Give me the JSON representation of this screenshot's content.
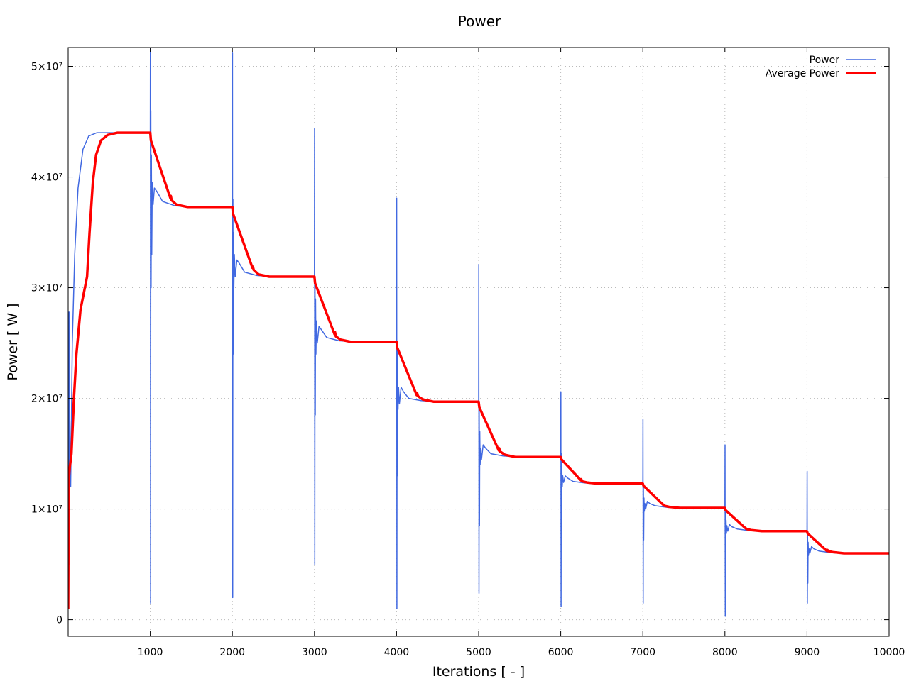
{
  "chart_data": {
    "type": "line",
    "title": "Power",
    "xlabel": "Iterations [ - ]",
    "ylabel": "Power [ W ]",
    "y_unit_multiplier": 10000000,
    "xlim": [
      0,
      10000
    ],
    "ylim": [
      -0.15,
      5.17
    ],
    "grid": true,
    "legend_position": "top-right",
    "x_ticks": [
      {
        "v": 1000,
        "label": "1000"
      },
      {
        "v": 2000,
        "label": "2000"
      },
      {
        "v": 3000,
        "label": "3000"
      },
      {
        "v": 4000,
        "label": "4000"
      },
      {
        "v": 5000,
        "label": "5000"
      },
      {
        "v": 6000,
        "label": "6000"
      },
      {
        "v": 7000,
        "label": "7000"
      },
      {
        "v": 8000,
        "label": "8000"
      },
      {
        "v": 9000,
        "label": "9000"
      },
      {
        "v": 10000,
        "label": "10000"
      }
    ],
    "y_ticks": [
      {
        "v": 0,
        "label": "0"
      },
      {
        "v": 1,
        "label": "1×10⁷"
      },
      {
        "v": 2,
        "label": "2×10⁷"
      },
      {
        "v": 3,
        "label": "3×10⁷"
      },
      {
        "v": 4,
        "label": "4×10⁷"
      },
      {
        "v": 5,
        "label": "5×10⁷"
      }
    ],
    "series": [
      {
        "name": "Power",
        "color": "#4169e1",
        "width": 1.5,
        "points": [
          [
            0,
            0.1
          ],
          [
            5,
            1.3
          ],
          [
            10,
            2.78
          ],
          [
            15,
            0.5
          ],
          [
            20,
            1.8
          ],
          [
            30,
            1.2
          ],
          [
            50,
            2.5
          ],
          [
            80,
            3.3
          ],
          [
            120,
            3.9
          ],
          [
            180,
            4.25
          ],
          [
            250,
            4.37
          ],
          [
            350,
            4.4
          ],
          [
            1000,
            4.4
          ],
          [
            1002,
            5.3
          ],
          [
            1004,
            0.15
          ],
          [
            1007,
            4.6
          ],
          [
            1010,
            3.0
          ],
          [
            1014,
            4.2
          ],
          [
            1018,
            3.3
          ],
          [
            1024,
            3.95
          ],
          [
            1035,
            3.75
          ],
          [
            1050,
            3.9
          ],
          [
            1080,
            3.87
          ],
          [
            1150,
            3.78
          ],
          [
            1300,
            3.74
          ],
          [
            1500,
            3.73
          ],
          [
            2000,
            3.73
          ],
          [
            2002,
            5.12
          ],
          [
            2004,
            0.2
          ],
          [
            2007,
            3.8
          ],
          [
            2010,
            2.4
          ],
          [
            2014,
            3.5
          ],
          [
            2018,
            3.0
          ],
          [
            2024,
            3.3
          ],
          [
            2035,
            3.1
          ],
          [
            2055,
            3.25
          ],
          [
            2085,
            3.22
          ],
          [
            2150,
            3.14
          ],
          [
            2300,
            3.11
          ],
          [
            2500,
            3.1
          ],
          [
            3000,
            3.1
          ],
          [
            3002,
            4.44
          ],
          [
            3004,
            0.5
          ],
          [
            3007,
            3.1
          ],
          [
            3010,
            1.85
          ],
          [
            3014,
            2.9
          ],
          [
            3018,
            2.4
          ],
          [
            3024,
            2.7
          ],
          [
            3035,
            2.5
          ],
          [
            3055,
            2.65
          ],
          [
            3085,
            2.62
          ],
          [
            3150,
            2.55
          ],
          [
            3300,
            2.52
          ],
          [
            3500,
            2.51
          ],
          [
            4000,
            2.51
          ],
          [
            4002,
            3.81
          ],
          [
            4004,
            0.1
          ],
          [
            4007,
            2.5
          ],
          [
            4010,
            1.3
          ],
          [
            4014,
            2.3
          ],
          [
            4018,
            1.9
          ],
          [
            4024,
            2.1
          ],
          [
            4035,
            1.95
          ],
          [
            4055,
            2.1
          ],
          [
            4085,
            2.06
          ],
          [
            4150,
            2.0
          ],
          [
            4300,
            1.98
          ],
          [
            4500,
            1.97
          ],
          [
            5000,
            1.97
          ],
          [
            5002,
            3.21
          ],
          [
            5004,
            0.24
          ],
          [
            5007,
            1.9
          ],
          [
            5010,
            0.85
          ],
          [
            5014,
            1.7
          ],
          [
            5018,
            1.4
          ],
          [
            5024,
            1.55
          ],
          [
            5035,
            1.45
          ],
          [
            5055,
            1.58
          ],
          [
            5085,
            1.55
          ],
          [
            5150,
            1.5
          ],
          [
            5300,
            1.48
          ],
          [
            5500,
            1.47
          ],
          [
            6000,
            1.47
          ],
          [
            6002,
            2.06
          ],
          [
            6004,
            0.12
          ],
          [
            6007,
            1.5
          ],
          [
            6010,
            0.95
          ],
          [
            6014,
            1.35
          ],
          [
            6018,
            1.2
          ],
          [
            6024,
            1.3
          ],
          [
            6035,
            1.24
          ],
          [
            6055,
            1.3
          ],
          [
            6085,
            1.28
          ],
          [
            6150,
            1.25
          ],
          [
            6300,
            1.235
          ],
          [
            6500,
            1.23
          ],
          [
            7000,
            1.23
          ],
          [
            7002,
            1.81
          ],
          [
            7004,
            0.15
          ],
          [
            7007,
            1.2
          ],
          [
            7010,
            0.72
          ],
          [
            7014,
            1.1
          ],
          [
            7018,
            0.98
          ],
          [
            7024,
            1.05
          ],
          [
            7035,
            1.0
          ],
          [
            7055,
            1.07
          ],
          [
            7085,
            1.05
          ],
          [
            7150,
            1.03
          ],
          [
            7300,
            1.015
          ],
          [
            7500,
            1.01
          ],
          [
            8000,
            1.01
          ],
          [
            8002,
            1.58
          ],
          [
            8004,
            0.03
          ],
          [
            8007,
            1.0
          ],
          [
            8010,
            0.52
          ],
          [
            8014,
            0.9
          ],
          [
            8018,
            0.78
          ],
          [
            8024,
            0.85
          ],
          [
            8035,
            0.8
          ],
          [
            8055,
            0.86
          ],
          [
            8085,
            0.84
          ],
          [
            8150,
            0.82
          ],
          [
            8300,
            0.805
          ],
          [
            8500,
            0.8
          ],
          [
            9000,
            0.8
          ],
          [
            9002,
            1.34
          ],
          [
            9004,
            0.15
          ],
          [
            9007,
            0.8
          ],
          [
            9010,
            0.33
          ],
          [
            9014,
            0.7
          ],
          [
            9018,
            0.58
          ],
          [
            9024,
            0.64
          ],
          [
            9035,
            0.6
          ],
          [
            9055,
            0.66
          ],
          [
            9085,
            0.64
          ],
          [
            9150,
            0.62
          ],
          [
            9300,
            0.605
          ],
          [
            9500,
            0.6
          ],
          [
            10000,
            0.6
          ]
        ]
      },
      {
        "name": "Average Power",
        "color": "#ff0000",
        "width": 3.5,
        "points": [
          [
            0,
            0.1
          ],
          [
            5,
            1.25
          ],
          [
            20,
            1.38
          ],
          [
            40,
            1.5
          ],
          [
            70,
            2.0
          ],
          [
            100,
            2.4
          ],
          [
            150,
            2.8
          ],
          [
            230,
            3.1
          ],
          [
            260,
            3.5
          ],
          [
            300,
            3.95
          ],
          [
            340,
            4.2
          ],
          [
            400,
            4.33
          ],
          [
            480,
            4.38
          ],
          [
            600,
            4.4
          ],
          [
            1000,
            4.4
          ],
          [
            1008,
            4.33
          ],
          [
            1245,
            3.81
          ],
          [
            1250,
            3.83
          ],
          [
            1260,
            3.79
          ],
          [
            1320,
            3.75
          ],
          [
            1450,
            3.73
          ],
          [
            2000,
            3.73
          ],
          [
            2008,
            3.67
          ],
          [
            2245,
            3.18
          ],
          [
            2250,
            3.19
          ],
          [
            2260,
            3.16
          ],
          [
            2320,
            3.12
          ],
          [
            2450,
            3.1
          ],
          [
            3000,
            3.1
          ],
          [
            3008,
            3.04
          ],
          [
            3245,
            2.58
          ],
          [
            3250,
            2.6
          ],
          [
            3260,
            2.56
          ],
          [
            3320,
            2.53
          ],
          [
            3450,
            2.51
          ],
          [
            4000,
            2.51
          ],
          [
            4008,
            2.46
          ],
          [
            4245,
            2.03
          ],
          [
            4250,
            2.05
          ],
          [
            4260,
            2.02
          ],
          [
            4320,
            1.99
          ],
          [
            4450,
            1.97
          ],
          [
            5000,
            1.97
          ],
          [
            5008,
            1.92
          ],
          [
            5245,
            1.53
          ],
          [
            5250,
            1.55
          ],
          [
            5260,
            1.52
          ],
          [
            5320,
            1.49
          ],
          [
            5450,
            1.47
          ],
          [
            6000,
            1.47
          ],
          [
            6008,
            1.45
          ],
          [
            6245,
            1.26
          ],
          [
            6250,
            1.27
          ],
          [
            6260,
            1.25
          ],
          [
            6320,
            1.24
          ],
          [
            6450,
            1.23
          ],
          [
            7000,
            1.23
          ],
          [
            7008,
            1.21
          ],
          [
            7245,
            1.04
          ],
          [
            7250,
            1.04
          ],
          [
            7260,
            1.03
          ],
          [
            7320,
            1.02
          ],
          [
            7450,
            1.01
          ],
          [
            8000,
            1.01
          ],
          [
            8008,
            0.99
          ],
          [
            8245,
            0.83
          ],
          [
            8250,
            0.83
          ],
          [
            8260,
            0.82
          ],
          [
            8320,
            0.81
          ],
          [
            8450,
            0.8
          ],
          [
            9000,
            0.8
          ],
          [
            9008,
            0.78
          ],
          [
            9245,
            0.62
          ],
          [
            9250,
            0.63
          ],
          [
            9260,
            0.62
          ],
          [
            9320,
            0.61
          ],
          [
            9450,
            0.6
          ],
          [
            10000,
            0.6
          ]
        ]
      }
    ]
  }
}
